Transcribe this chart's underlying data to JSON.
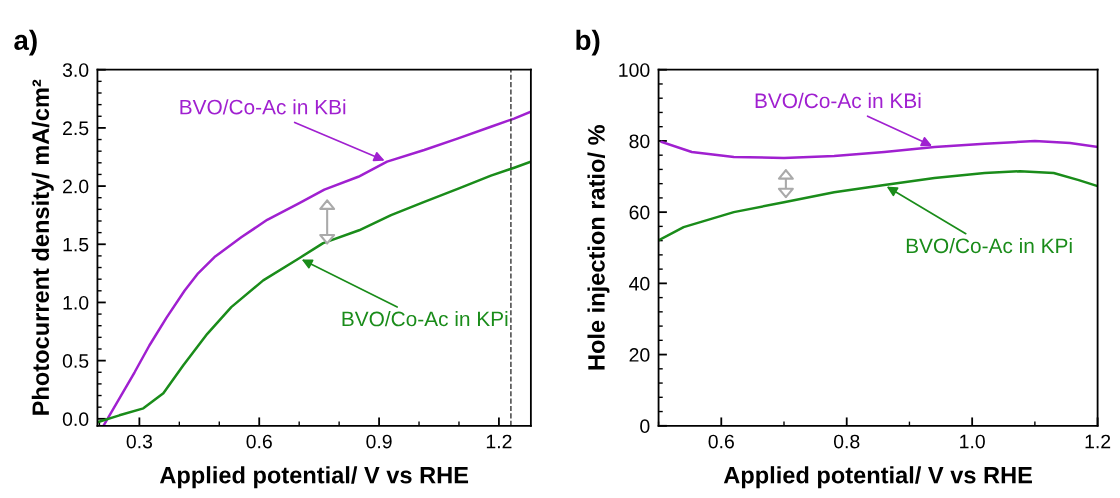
{
  "chart_data": [
    {
      "type": "line",
      "title": "a)",
      "xlabel": "Applied potential/ V vs RHE",
      "ylabel": "Photocurrent density/ mA/cm²",
      "xlim": [
        0.195,
        1.28
      ],
      "xticks": [
        0.3,
        0.6,
        0.9,
        1.2
      ],
      "ylim": [
        -0.06,
        3.0
      ],
      "yticks": [
        {
          "value": 0,
          "label": "0.0"
        },
        0.5,
        {
          "value": 1,
          "label": "1.0"
        },
        1.5,
        {
          "value": 2,
          "label": "2.0"
        },
        2.5,
        {
          "value": 3,
          "label": "3.0"
        }
      ],
      "series": [
        {
          "color": "#a020d0",
          "x": [
            0.21,
            0.288,
            0.325,
            0.368,
            0.413,
            0.447,
            0.488,
            0.555,
            0.62,
            0.698,
            0.763,
            0.848,
            0.92,
            1.013,
            1.098,
            1.18,
            1.238,
            1.28
          ],
          "values": [
            -0.06,
            0.4,
            0.63,
            0.87,
            1.1,
            1.25,
            1.39,
            1.56,
            1.71,
            1.85,
            1.97,
            2.08,
            2.21,
            2.31,
            2.41,
            2.51,
            2.58,
            2.64
          ]
        },
        {
          "color": "#1a8c1a",
          "x": [
            0.195,
            0.25,
            0.31,
            0.36,
            0.41,
            0.47,
            0.53,
            0.61,
            0.7,
            0.76,
            0.85,
            0.93,
            1.01,
            1.1,
            1.18,
            1.24,
            1.28
          ],
          "values": [
            -0.03,
            0.03,
            0.09,
            0.22,
            0.46,
            0.73,
            0.96,
            1.19,
            1.38,
            1.51,
            1.62,
            1.75,
            1.86,
            1.98,
            2.09,
            2.16,
            2.21
          ]
        }
      ],
      "ref_lines": [
        {
          "axis": "x",
          "value": 1.23,
          "color": "#333333",
          "line_style": "dashed"
        }
      ],
      "annotations": [
        {
          "text": "BVO/Co-Ac in KBi",
          "x": 0.92,
          "y": 2.21
        },
        {
          "text": "BVO/Co-Ac in KPi",
          "x": 0.7,
          "y": 1.38
        }
      ],
      "grid": false,
      "legend": false
    },
    {
      "type": "line",
      "title": "b)",
      "xlabel": "Applied potential/ V vs RHE",
      "ylabel": "Hole injection ratio/ %",
      "xlim": [
        0.5,
        1.2
      ],
      "xticks": [
        0.6,
        0.8,
        {
          "value": 1,
          "label": "1.0"
        },
        1.2
      ],
      "ylim": [
        0,
        100
      ],
      "yticks": [
        0,
        20,
        40,
        60,
        80,
        100
      ],
      "series": [
        {
          "color": "#a020d0",
          "x": [
            0.505,
            0.553,
            0.62,
            0.7,
            0.78,
            0.86,
            0.94,
            1.02,
            1.1,
            1.156,
            1.2
          ],
          "values": [
            79.7,
            76.9,
            75.5,
            75.2,
            75.8,
            76.9,
            78.3,
            79.2,
            80.0,
            79.4,
            78.3
          ]
        },
        {
          "color": "#1a8c1a",
          "x": [
            0.5,
            0.54,
            0.62,
            0.7,
            0.78,
            0.86,
            0.94,
            1.02,
            1.076,
            1.13,
            1.17,
            1.2
          ],
          "values": [
            52.1,
            55.8,
            60.0,
            62.8,
            65.6,
            67.6,
            69.6,
            71.0,
            71.5,
            71.0,
            69.0,
            67.3
          ]
        }
      ],
      "annotations": [
        {
          "text": "BVO/Co-Ac in KBi",
          "x": 0.94,
          "y": 78.3
        },
        {
          "text": "BVO/Co-Ac in KPi",
          "x": 0.86,
          "y": 67.6
        }
      ],
      "grid": false,
      "legend": false
    }
  ]
}
